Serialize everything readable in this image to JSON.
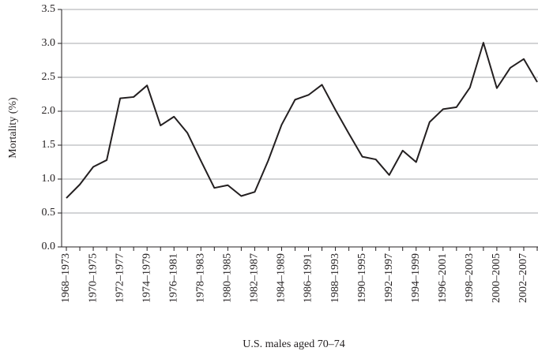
{
  "chart_data": {
    "type": "line",
    "x_label": "U.S. males aged 70–74",
    "y_label": "Mortality (%)",
    "categories": [
      "1968–1973",
      null,
      "1970–1975",
      null,
      "1972–1977",
      null,
      "1974–1979",
      null,
      "1976–1981",
      null,
      "1978–1983",
      null,
      "1980–1985",
      null,
      "1982–1987",
      null,
      "1984–1989",
      null,
      "1986–1991",
      null,
      "1988–1993",
      null,
      "1990–1995",
      null,
      "1992–1997",
      null,
      "1994–1999",
      null,
      "1996–2001",
      null,
      "1998–2003",
      null,
      "2000–2005",
      null,
      "2002–2007",
      null
    ],
    "series": [
      {
        "color": "#231f20",
        "values": [
          0.72,
          0.92,
          1.18,
          1.28,
          2.19,
          2.21,
          2.38,
          1.79,
          1.92,
          1.68,
          1.27,
          0.87,
          0.91,
          0.75,
          0.81,
          1.27,
          1.8,
          2.17,
          2.24,
          2.39,
          2.02,
          1.67,
          1.33,
          1.29,
          1.06,
          1.42,
          1.25,
          1.84,
          2.03,
          2.06,
          2.35,
          3.01,
          2.34,
          2.64,
          2.77,
          2.43
        ]
      }
    ],
    "ylim": [
      0,
      3.5
    ],
    "yticks": [
      {
        "value": 0,
        "label": "0.0"
      },
      0.5,
      {
        "value": 1,
        "label": "1.0"
      },
      1.5,
      {
        "value": 2,
        "label": "2.0"
      },
      2.5,
      {
        "value": 3,
        "label": "3.0"
      },
      3.5
    ],
    "grid": true
  }
}
